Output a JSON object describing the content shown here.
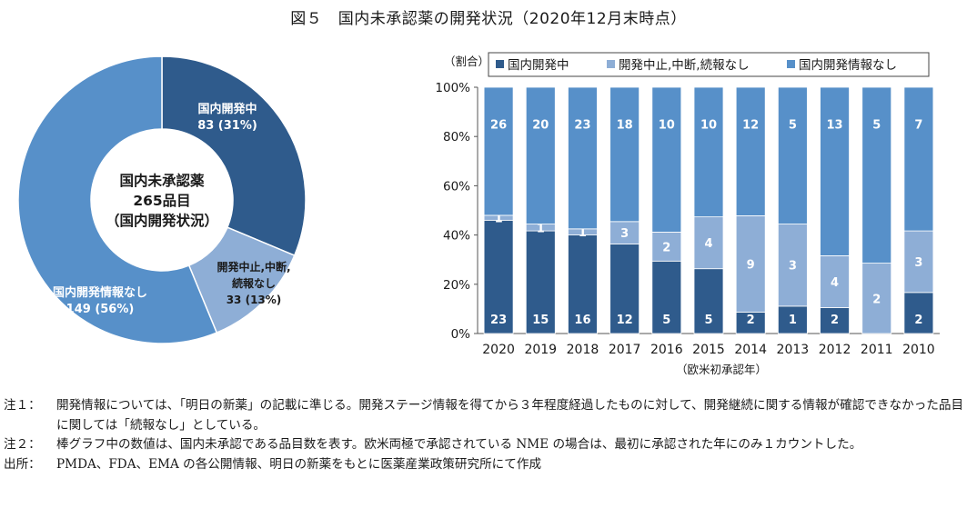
{
  "title": "図５　国内未承認薬の開発状況（2020年12月末時点）",
  "chart_data": [
    {
      "type": "pie",
      "center_label": [
        "国内未承認薬",
        "265品目",
        "（国内開発状況）"
      ],
      "slices": [
        {
          "name": "国内開発中",
          "value": 83,
          "label": [
            "国内開発中",
            "83 (31%)"
          ],
          "color": "#2f5b8c"
        },
        {
          "name": "開発中止,中断,続報なし",
          "value": 33,
          "label": [
            "開発中止,中断,",
            "続報なし",
            "33 (13%)"
          ],
          "color": "#8eaed6"
        },
        {
          "name": "国内開発情報なし",
          "value": 149,
          "label": [
            "国内開発情報なし",
            "149 (56%)"
          ],
          "color": "#5790c9"
        }
      ]
    },
    {
      "type": "bar",
      "stacked": true,
      "ylabel": "（割合）",
      "xlabel": "（欧米初承認年）",
      "yticks": [
        "0%",
        "20%",
        "40%",
        "60%",
        "80%",
        "100%"
      ],
      "ylim": [
        0,
        100
      ],
      "legend_position": "top",
      "categories": [
        "2020",
        "2019",
        "2018",
        "2017",
        "2016",
        "2015",
        "2014",
        "2013",
        "2012",
        "2011",
        "2010"
      ],
      "series": [
        {
          "name": "国内開発中",
          "color": "#2f5b8c",
          "values": [
            23,
            15,
            16,
            12,
            5,
            5,
            2,
            1,
            2,
            0,
            2
          ]
        },
        {
          "name": "開発中止,中断,続報なし",
          "color": "#8eaed6",
          "values": [
            1,
            1,
            1,
            3,
            2,
            4,
            9,
            3,
            4,
            2,
            3
          ]
        },
        {
          "name": "国内開発情報なし",
          "color": "#5790c9",
          "values": [
            26,
            20,
            23,
            18,
            10,
            10,
            12,
            5,
            13,
            5,
            7
          ]
        }
      ]
    }
  ],
  "notes": [
    {
      "label": "注１：",
      "text": "開発情報については、「明日の新薬」の記載に準じる。開発ステージ情報を得てから３年程度経過したものに対して、開発継続に関する情報が確認できなかった品目に関しては「続報なし」としている。"
    },
    {
      "label": "注２：",
      "text": "棒グラフ中の数値は、国内未承認である品目数を表す。欧米両極で承認されている NME の場合は、最初に承認された年にのみ１カウントした。"
    },
    {
      "label": "出所：",
      "text": "PMDA、FDA、EMA の各公開情報、明日の新薬をもとに医薬産業政策研究所にて作成"
    }
  ]
}
